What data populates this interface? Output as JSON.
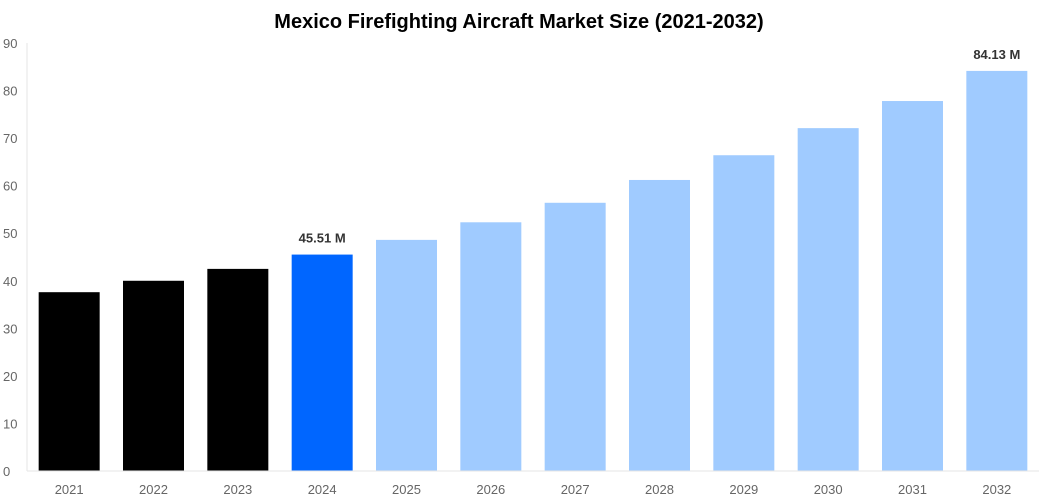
{
  "chart_data": {
    "type": "bar",
    "title": "Mexico Firefighting Aircraft Market Size (2021-2032)",
    "xlabel": "",
    "ylabel": "",
    "ylim": [
      0,
      90
    ],
    "yticks": [
      "0",
      "10",
      "20",
      "30",
      "40",
      "50",
      "60",
      "70",
      "80",
      "90"
    ],
    "grid": false,
    "categories": [
      "2021",
      "2022",
      "2023",
      "2024",
      "2025",
      "2026",
      "2027",
      "2028",
      "2029",
      "2030",
      "2031",
      "2032"
    ],
    "values": [
      37.6,
      40.0,
      42.5,
      45.51,
      48.6,
      52.3,
      56.4,
      61.2,
      66.4,
      72.1,
      77.8,
      84.13
    ],
    "colors": [
      "#000000",
      "#000000",
      "#000000",
      "#0066ff",
      "#a0cbff",
      "#a0cbff",
      "#a0cbff",
      "#a0cbff",
      "#a0cbff",
      "#a0cbff",
      "#a0cbff",
      "#a0cbff"
    ],
    "data_labels": [
      {
        "category": "2024",
        "text": "45.51 M"
      },
      {
        "category": "2032",
        "text": "84.13 M"
      }
    ]
  }
}
